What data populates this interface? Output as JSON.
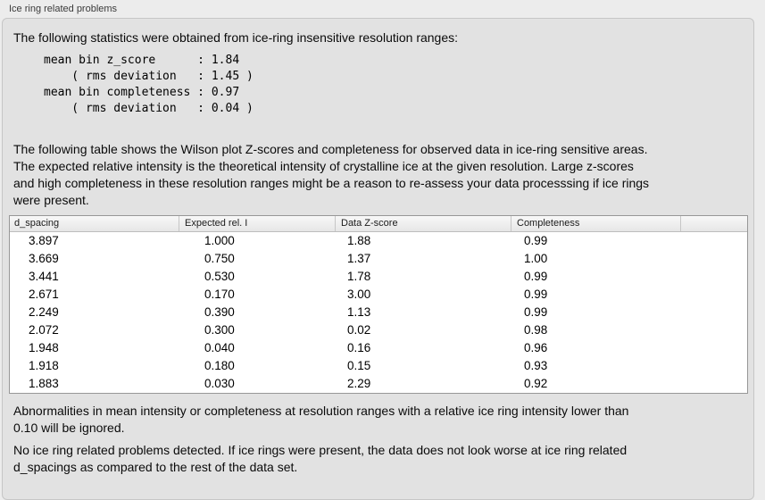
{
  "panel": {
    "title": "Ice ring related problems"
  },
  "intro": "The following statistics were obtained from ice-ring insensitive resolution ranges:",
  "stats_block": "mean bin z_score      : 1.84\n    ( rms deviation   : 1.45 )\nmean bin completeness : 0.97\n    ( rms deviation   : 0.04 )",
  "stats": {
    "mean_bin_z_score": "1.84",
    "z_score_rms_deviation": "1.45",
    "mean_bin_completeness": "0.97",
    "completeness_rms_deviation": "0.04"
  },
  "table_intro": "The following table shows the Wilson plot Z-scores and completeness for observed data in ice-ring sensitive areas.\nThe expected relative intensity is the theoretical intensity of crystalline ice at the given resolution. Large z-scores\nand high completeness in these resolution ranges might be a reason to re-assess your data processsing if ice rings\nwere present.",
  "table": {
    "columns": [
      "d_spacing",
      "Expected rel. I",
      "Data Z-score",
      "Completeness"
    ],
    "rows": [
      [
        "3.897",
        "1.000",
        "1.88",
        "0.99"
      ],
      [
        "3.669",
        "0.750",
        "1.37",
        "1.00"
      ],
      [
        "3.441",
        "0.530",
        "1.78",
        "0.99"
      ],
      [
        "2.671",
        "0.170",
        "3.00",
        "0.99"
      ],
      [
        "2.249",
        "0.390",
        "1.13",
        "0.99"
      ],
      [
        "2.072",
        "0.300",
        "0.02",
        "0.98"
      ],
      [
        "1.948",
        "0.040",
        "0.16",
        "0.96"
      ],
      [
        "1.918",
        "0.180",
        "0.15",
        "0.93"
      ],
      [
        "1.883",
        "0.030",
        "2.29",
        "0.92"
      ]
    ]
  },
  "note_ignore": "Abnormalities in mean intensity or completeness at resolution ranges with a relative ice ring intensity lower than\n0.10 will be ignored.",
  "conclusion": "No ice ring related problems detected. If ice rings were present, the data does not look worse at ice ring related\nd_spacings as compared to the rest of the data set.",
  "colors": {
    "outer_background": "#ececec",
    "panel_background": "#e2e2e2",
    "panel_border": "#c6c6c6",
    "table_background": "#ffffff",
    "table_border": "#979797",
    "header_gradient_top": "#f8f8f8",
    "header_gradient_bottom": "#e6e6e6",
    "text": "#0a0a0a"
  }
}
